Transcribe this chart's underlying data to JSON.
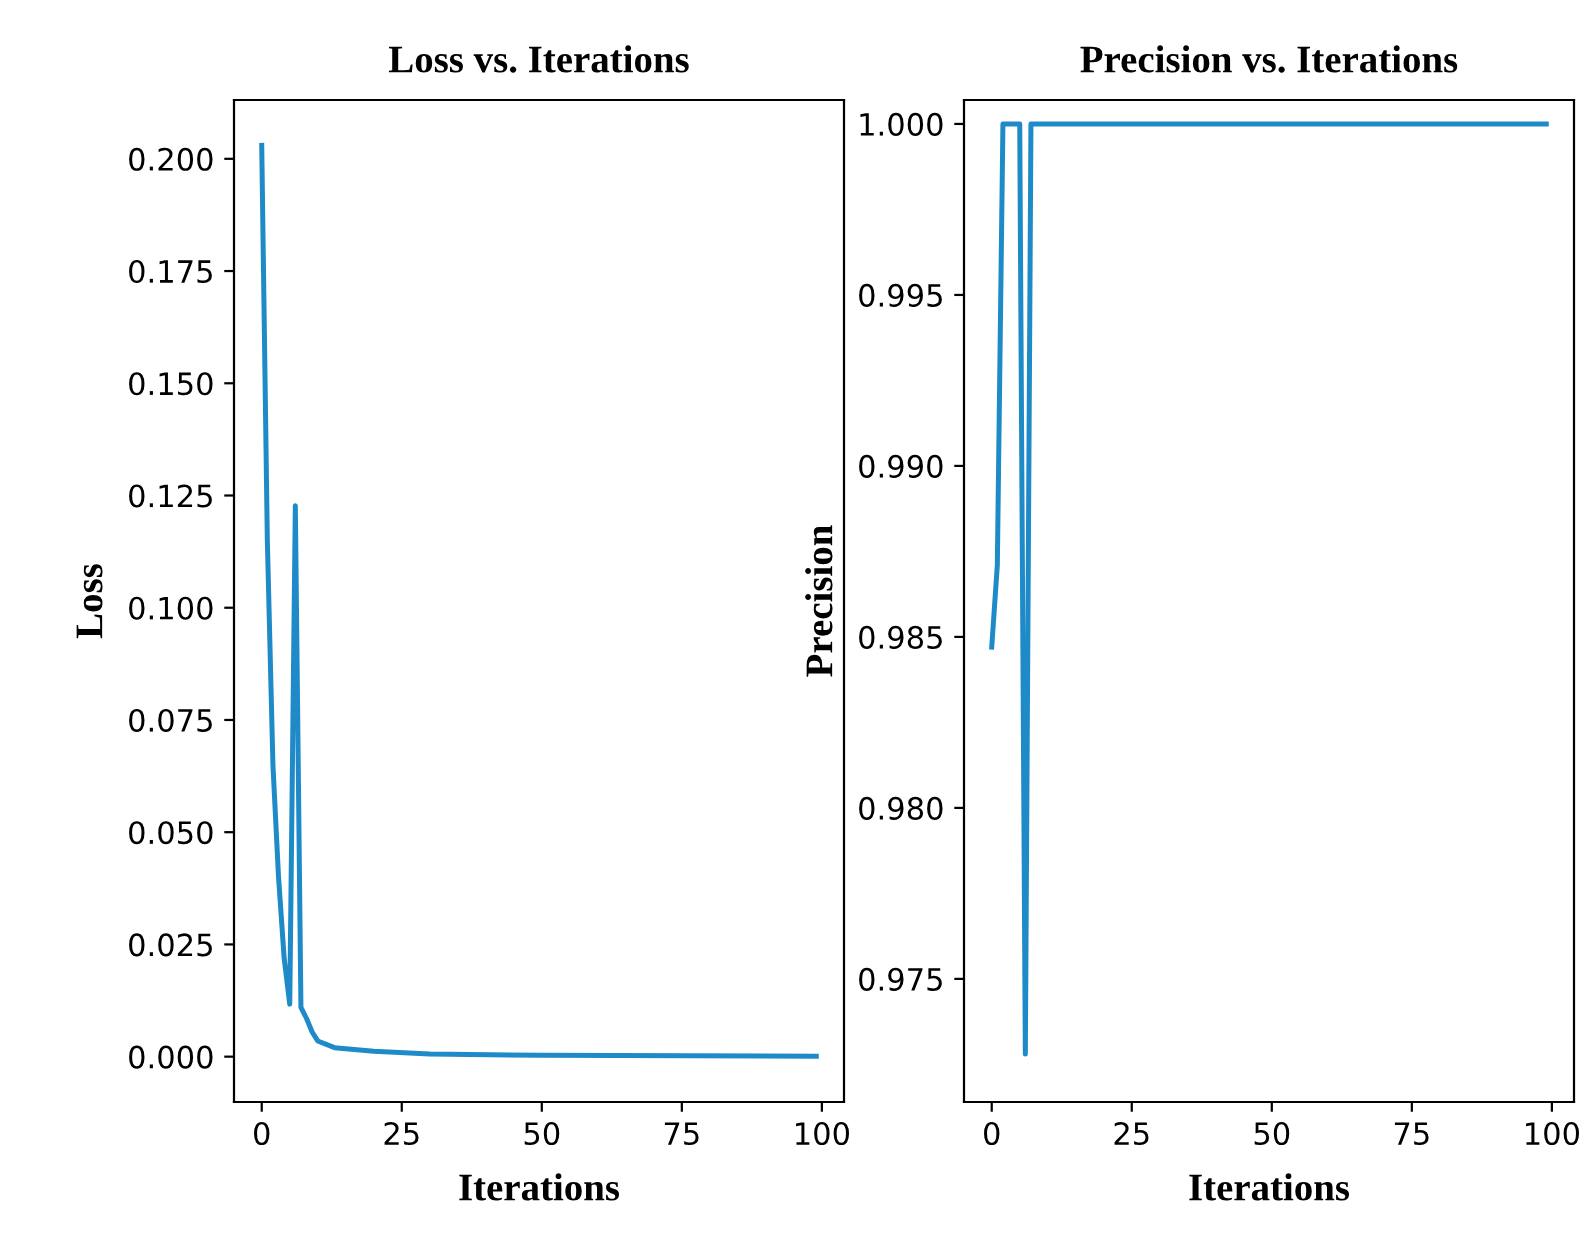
{
  "chart_data": [
    {
      "type": "line",
      "title": "Loss vs. Iterations",
      "xlabel": "Iterations",
      "ylabel": "Loss",
      "xlim": [
        -4.95,
        103.95
      ],
      "xticks": [
        0,
        25,
        50,
        75,
        100
      ],
      "ylim": [
        -0.0101,
        0.2131
      ],
      "yticks": [
        {
          "value": 0,
          "label": "0.000"
        },
        {
          "value": 0.025,
          "label": "0.025"
        },
        {
          "value": 0.05,
          "label": "0.050"
        },
        {
          "value": 0.075,
          "label": "0.075"
        },
        {
          "value": 0.1,
          "label": "0.100"
        },
        {
          "value": 0.125,
          "label": "0.125"
        },
        {
          "value": 0.15,
          "label": "0.150"
        },
        {
          "value": 0.175,
          "label": "0.175"
        },
        {
          "value": 0.2,
          "label": "0.200"
        }
      ],
      "grid": false,
      "legend": false,
      "series": [
        {
          "color": "#1f8ac8",
          "x": [
            0,
            1,
            2,
            3,
            4,
            5,
            6,
            7,
            8,
            9,
            10,
            13,
            20,
            30,
            50,
            99
          ],
          "values": [
            0.203,
            0.115,
            0.065,
            0.04,
            0.022,
            0.0117,
            0.1227,
            0.011,
            0.0085,
            0.0055,
            0.0035,
            0.002,
            0.0012,
            0.0006,
            0.0003,
            0.0001
          ]
        }
      ]
    },
    {
      "type": "line",
      "title": "Precision vs. Iterations",
      "xlabel": "Iterations",
      "ylabel": "Precision",
      "xlim": [
        -4.95,
        103.95
      ],
      "xticks": [
        0,
        25,
        50,
        75,
        100
      ],
      "ylim": [
        0.9714,
        1.0007
      ],
      "yticks": [
        0.975,
        {
          "value": 0.98,
          "label": "0.980"
        },
        0.985,
        {
          "value": 0.99,
          "label": "0.990"
        },
        0.995,
        {
          "value": 1,
          "label": "1.000"
        }
      ],
      "grid": false,
      "legend": false,
      "series": [
        {
          "color": "#1f8ac8",
          "x": [
            0,
            1,
            2,
            5,
            6,
            7,
            99
          ],
          "values": [
            0.9847,
            0.9871,
            1.0,
            1.0,
            0.9728,
            1.0,
            1.0
          ]
        }
      ]
    }
  ]
}
